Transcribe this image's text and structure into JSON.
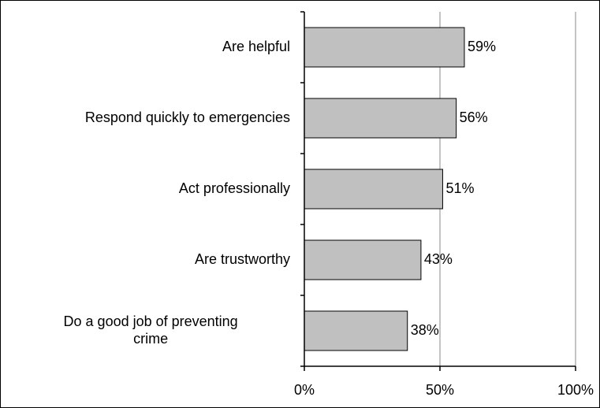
{
  "chart_data": {
    "type": "bar",
    "orientation": "horizontal",
    "categories": [
      [
        "Are helpful"
      ],
      [
        "Respond quickly to emergencies"
      ],
      [
        "Act professionally"
      ],
      [
        "Are trustworthy"
      ],
      [
        "Do a good job of preventing",
        "crime"
      ]
    ],
    "values": [
      59,
      56,
      51,
      43,
      38
    ],
    "value_labels": [
      "59%",
      "56%",
      "51%",
      "43%",
      "38%"
    ],
    "title": "",
    "xlabel": "",
    "ylabel": "",
    "xlim": [
      0,
      100
    ],
    "x_ticks": [
      0,
      50,
      100
    ],
    "x_tick_labels": [
      "0%",
      "50%",
      "100%"
    ],
    "grid": "vertical gridlines",
    "legend": "none",
    "colors": {
      "bar_fill": "#c0c0c0",
      "bar_stroke": "#000000",
      "gridline": "#8a8a8a",
      "axis": "#000000"
    }
  }
}
